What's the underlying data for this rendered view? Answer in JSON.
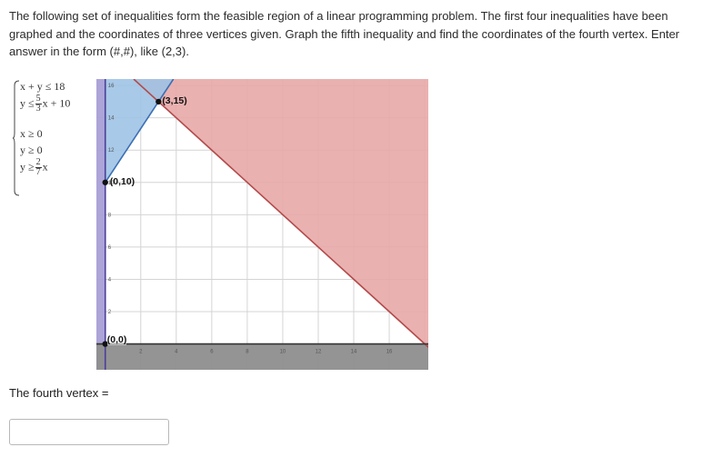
{
  "question": {
    "text": "The following set of inequalities form the feasible region of a linear programming problem. The first four inequalities have been graphed and the coordinates of three vertices given. Graph the fifth inequality and find the coordinates of the fourth vertex. Enter answer in the form (#,#), like (2,3)."
  },
  "inequalities": {
    "i1": "x + y ≤ 18",
    "i2_lhs": "y ≤",
    "i2_num": "5",
    "i2_den": "3",
    "i2_rhs": "x + 10",
    "i3": "x ≥ 0",
    "i4": "y ≥ 0",
    "i5_lhs": "y ≥",
    "i5_num": "2",
    "i5_den": "7",
    "i5_rhs": "x"
  },
  "graph": {
    "vertex_labels": [
      "(3,15)",
      "(0,10)",
      "(0,0)"
    ],
    "x_ticks": [
      "2",
      "4",
      "6",
      "8",
      "10",
      "12",
      "14",
      "16"
    ],
    "y_ticks": [
      "2",
      "4",
      "6",
      "8",
      "10",
      "12",
      "14",
      "16"
    ],
    "colors": {
      "red_region": "#e8a8a8",
      "blue_region": "#9fc3e6",
      "purple_region": "#a99fd6",
      "gray_region": "#8e8e8e"
    }
  },
  "chart_data": {
    "type": "line",
    "xlim": [
      -0.5,
      18.2
    ],
    "ylim": [
      -1.6,
      16.4
    ],
    "lines": [
      {
        "equation": "x + y = 18",
        "shade": "above",
        "color": "#e8a8a8"
      },
      {
        "equation": "y = 5/3 x + 10",
        "shade": "above",
        "color": "#9fc3e6"
      },
      {
        "equation": "x = 0",
        "shade": "left",
        "color": "#a99fd6"
      },
      {
        "equation": "y = 0",
        "shade": "below",
        "color": "#8e8e8e"
      }
    ],
    "vertices": [
      {
        "label": "(3,15)",
        "x": 3,
        "y": 15
      },
      {
        "label": "(0,10)",
        "x": 0,
        "y": 10
      },
      {
        "label": "(0,0)",
        "x": 0,
        "y": 0
      }
    ],
    "grid": true
  },
  "answer": {
    "label": "The fourth vertex =",
    "value": "",
    "placeholder": ""
  }
}
